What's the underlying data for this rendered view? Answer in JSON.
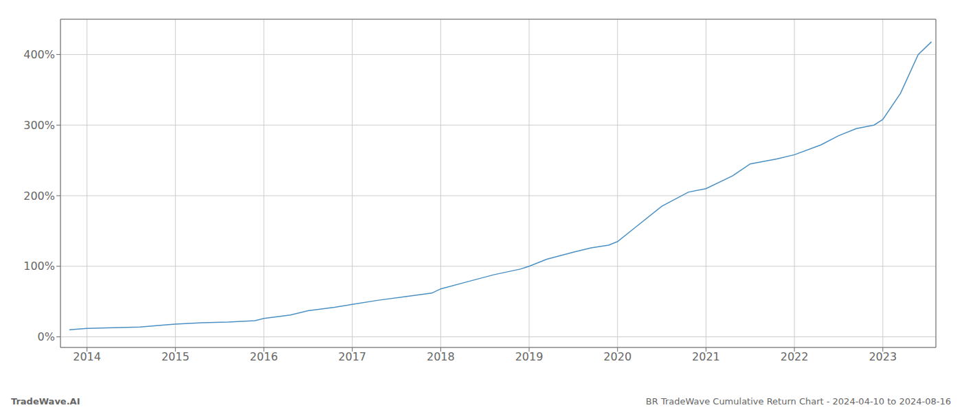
{
  "chart_data": {
    "type": "line",
    "title": "BR TradeWave Cumulative Return Chart - 2024-04-10 to 2024-08-16",
    "annotations": [
      "TradeWave.AI"
    ],
    "x": [
      2013.8,
      2014.0,
      2014.3,
      2014.6,
      2014.9,
      2015.0,
      2015.3,
      2015.6,
      2015.9,
      2016.0,
      2016.3,
      2016.5,
      2016.8,
      2017.0,
      2017.3,
      2017.6,
      2017.9,
      2018.0,
      2018.3,
      2018.6,
      2018.9,
      2019.0,
      2019.2,
      2019.5,
      2019.7,
      2019.9,
      2020.0,
      2020.2,
      2020.5,
      2020.8,
      2021.0,
      2021.3,
      2021.5,
      2021.8,
      2022.0,
      2022.3,
      2022.5,
      2022.7,
      2022.9,
      2023.0,
      2023.2,
      2023.4,
      2023.55
    ],
    "values": [
      10,
      12,
      13,
      14,
      17,
      18,
      20,
      21,
      23,
      26,
      31,
      37,
      42,
      46,
      52,
      57,
      62,
      68,
      78,
      88,
      96,
      100,
      110,
      120,
      126,
      130,
      135,
      155,
      185,
      205,
      210,
      228,
      245,
      252,
      258,
      272,
      285,
      295,
      300,
      308,
      345,
      400,
      418
    ],
    "color": "#4a90c4",
    "xlim": [
      2013.7,
      2023.6
    ],
    "xticks": [
      2014,
      2015,
      2016,
      2017,
      2018,
      2019,
      2020,
      2021,
      2022,
      2023
    ],
    "ylim": [
      -15,
      450
    ],
    "yticks": [
      {
        "value": 0,
        "label": "0%"
      },
      {
        "value": 100,
        "label": "100%"
      },
      {
        "value": 200,
        "label": "200%"
      },
      {
        "value": 300,
        "label": "300%"
      },
      {
        "value": 400,
        "label": "400%"
      }
    ],
    "grid": true
  }
}
